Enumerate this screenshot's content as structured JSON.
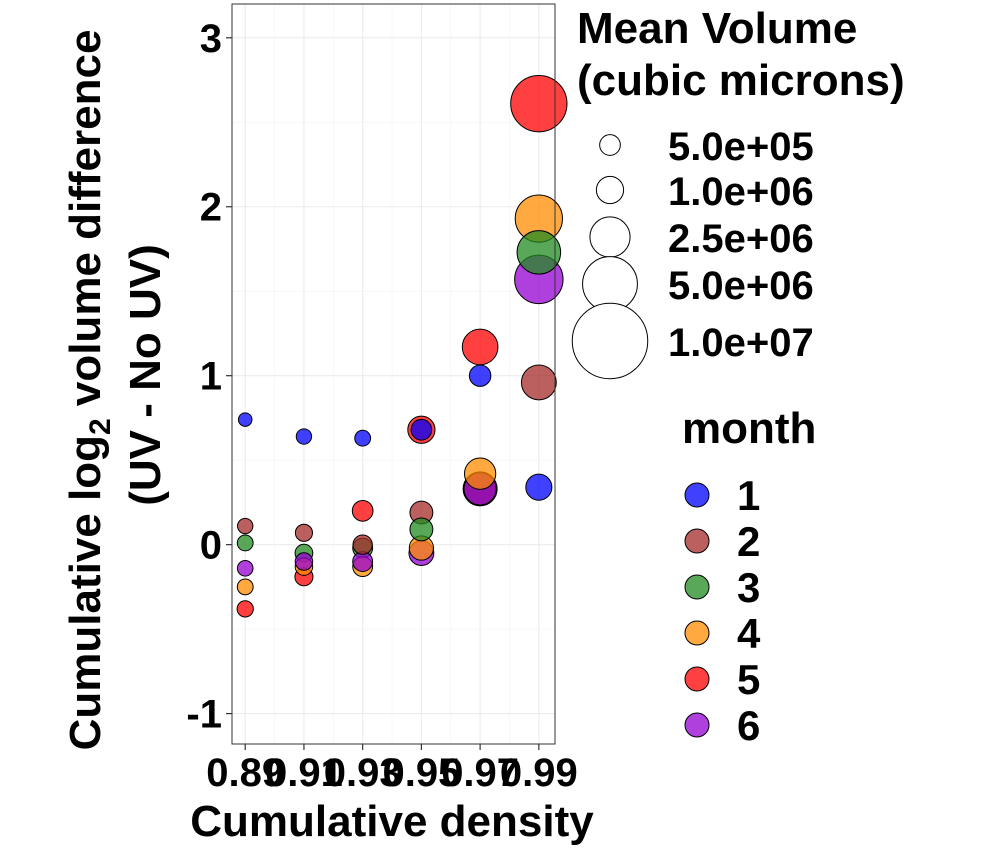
{
  "chart_data": {
    "type": "scatter",
    "xlabel": "Cumulative density",
    "ylabel_part1": "Cumulative log",
    "ylabel_sub": "2",
    "ylabel_part2": " volume difference",
    "ylabel_line2": "(UV - No UV)",
    "x_ticks": [
      {
        "value": 0.89,
        "label": "0.89"
      },
      {
        "value": 0.91,
        "label": "0.91"
      },
      {
        "value": 0.93,
        "label": "0.93"
      },
      {
        "value": 0.95,
        "label": "0.95"
      },
      {
        "value": 0.97,
        "label": "0.97"
      },
      {
        "value": 0.99,
        "label": "0.99"
      }
    ],
    "y_ticks": [
      {
        "value": -1,
        "label": "-1"
      },
      {
        "value": 0,
        "label": "0"
      },
      {
        "value": 1,
        "label": "1"
      },
      {
        "value": 2,
        "label": "2"
      },
      {
        "value": 3,
        "label": "3"
      }
    ],
    "xlim": [
      0.8855,
      0.9955
    ],
    "ylim": [
      -1.18,
      3.2
    ],
    "grid": true,
    "size_legend": {
      "title_line1": "Mean Volume",
      "title_line2": "(cubic microns)",
      "entries": [
        {
          "value": 500000,
          "label": "5.0e+05"
        },
        {
          "value": 1000000,
          "label": "1.0e+06"
        },
        {
          "value": 2500000,
          "label": "2.5e+06"
        },
        {
          "value": 5000000,
          "label": "5.0e+06"
        },
        {
          "value": 10000000,
          "label": "1.0e+07"
        }
      ]
    },
    "color_legend": {
      "title": "month",
      "placement": "right"
    },
    "series": [
      {
        "name": "1",
        "color": "#0000FF",
        "points": [
          {
            "x": 0.89,
            "y": 0.74,
            "volume": 150000
          },
          {
            "x": 0.91,
            "y": 0.64,
            "volume": 220000
          },
          {
            "x": 0.93,
            "y": 0.63,
            "volume": 240000
          },
          {
            "x": 0.95,
            "y": 0.68,
            "volume": 500000
          },
          {
            "x": 0.97,
            "y": 1.0,
            "volume": 550000
          },
          {
            "x": 0.99,
            "y": 0.34,
            "volume": 900000
          }
        ]
      },
      {
        "name": "2",
        "color": "#A52A2A",
        "points": [
          {
            "x": 0.89,
            "y": 0.11,
            "volume": 220000
          },
          {
            "x": 0.91,
            "y": 0.07,
            "volume": 300000
          },
          {
            "x": 0.93,
            "y": 0.0,
            "volume": 420000
          },
          {
            "x": 0.95,
            "y": 0.19,
            "volume": 650000
          },
          {
            "x": 0.97,
            "y": 0.33,
            "volume": 1600000
          },
          {
            "x": 0.99,
            "y": 0.96,
            "volume": 1800000
          }
        ]
      },
      {
        "name": "3",
        "color": "#228B22",
        "points": [
          {
            "x": 0.89,
            "y": 0.01,
            "volume": 240000
          },
          {
            "x": 0.91,
            "y": -0.05,
            "volume": 330000
          },
          {
            "x": 0.93,
            "y": -0.02,
            "volume": 450000
          },
          {
            "x": 0.95,
            "y": 0.09,
            "volume": 650000
          },
          {
            "x": 0.97,
            "y": 0.33,
            "volume": 1700000
          },
          {
            "x": 0.99,
            "y": 1.73,
            "volume": 3000000
          }
        ]
      },
      {
        "name": "4",
        "color": "#FF8C00",
        "points": [
          {
            "x": 0.89,
            "y": -0.25,
            "volume": 240000
          },
          {
            "x": 0.91,
            "y": -0.13,
            "volume": 320000
          },
          {
            "x": 0.93,
            "y": -0.13,
            "volume": 450000
          },
          {
            "x": 0.95,
            "y": -0.02,
            "volume": 750000
          },
          {
            "x": 0.97,
            "y": 0.42,
            "volume": 1400000
          },
          {
            "x": 0.99,
            "y": 1.93,
            "volume": 3600000
          }
        ]
      },
      {
        "name": "5",
        "color": "#FF0000",
        "points": [
          {
            "x": 0.89,
            "y": -0.38,
            "volume": 260000
          },
          {
            "x": 0.91,
            "y": -0.19,
            "volume": 350000
          },
          {
            "x": 0.93,
            "y": 0.2,
            "volume": 500000
          },
          {
            "x": 0.95,
            "y": 0.68,
            "volume": 1000000
          },
          {
            "x": 0.97,
            "y": 1.17,
            "volume": 1900000
          },
          {
            "x": 0.99,
            "y": 2.61,
            "volume": 5300000
          }
        ]
      },
      {
        "name": "6",
        "color": "#9400D3",
        "points": [
          {
            "x": 0.89,
            "y": -0.14,
            "volume": 230000
          },
          {
            "x": 0.91,
            "y": -0.1,
            "volume": 320000
          },
          {
            "x": 0.93,
            "y": -0.1,
            "volume": 450000
          },
          {
            "x": 0.95,
            "y": -0.05,
            "volume": 800000
          },
          {
            "x": 0.97,
            "y": 0.33,
            "volume": 1500000
          },
          {
            "x": 0.99,
            "y": 1.57,
            "volume": 3800000
          }
        ]
      }
    ]
  }
}
